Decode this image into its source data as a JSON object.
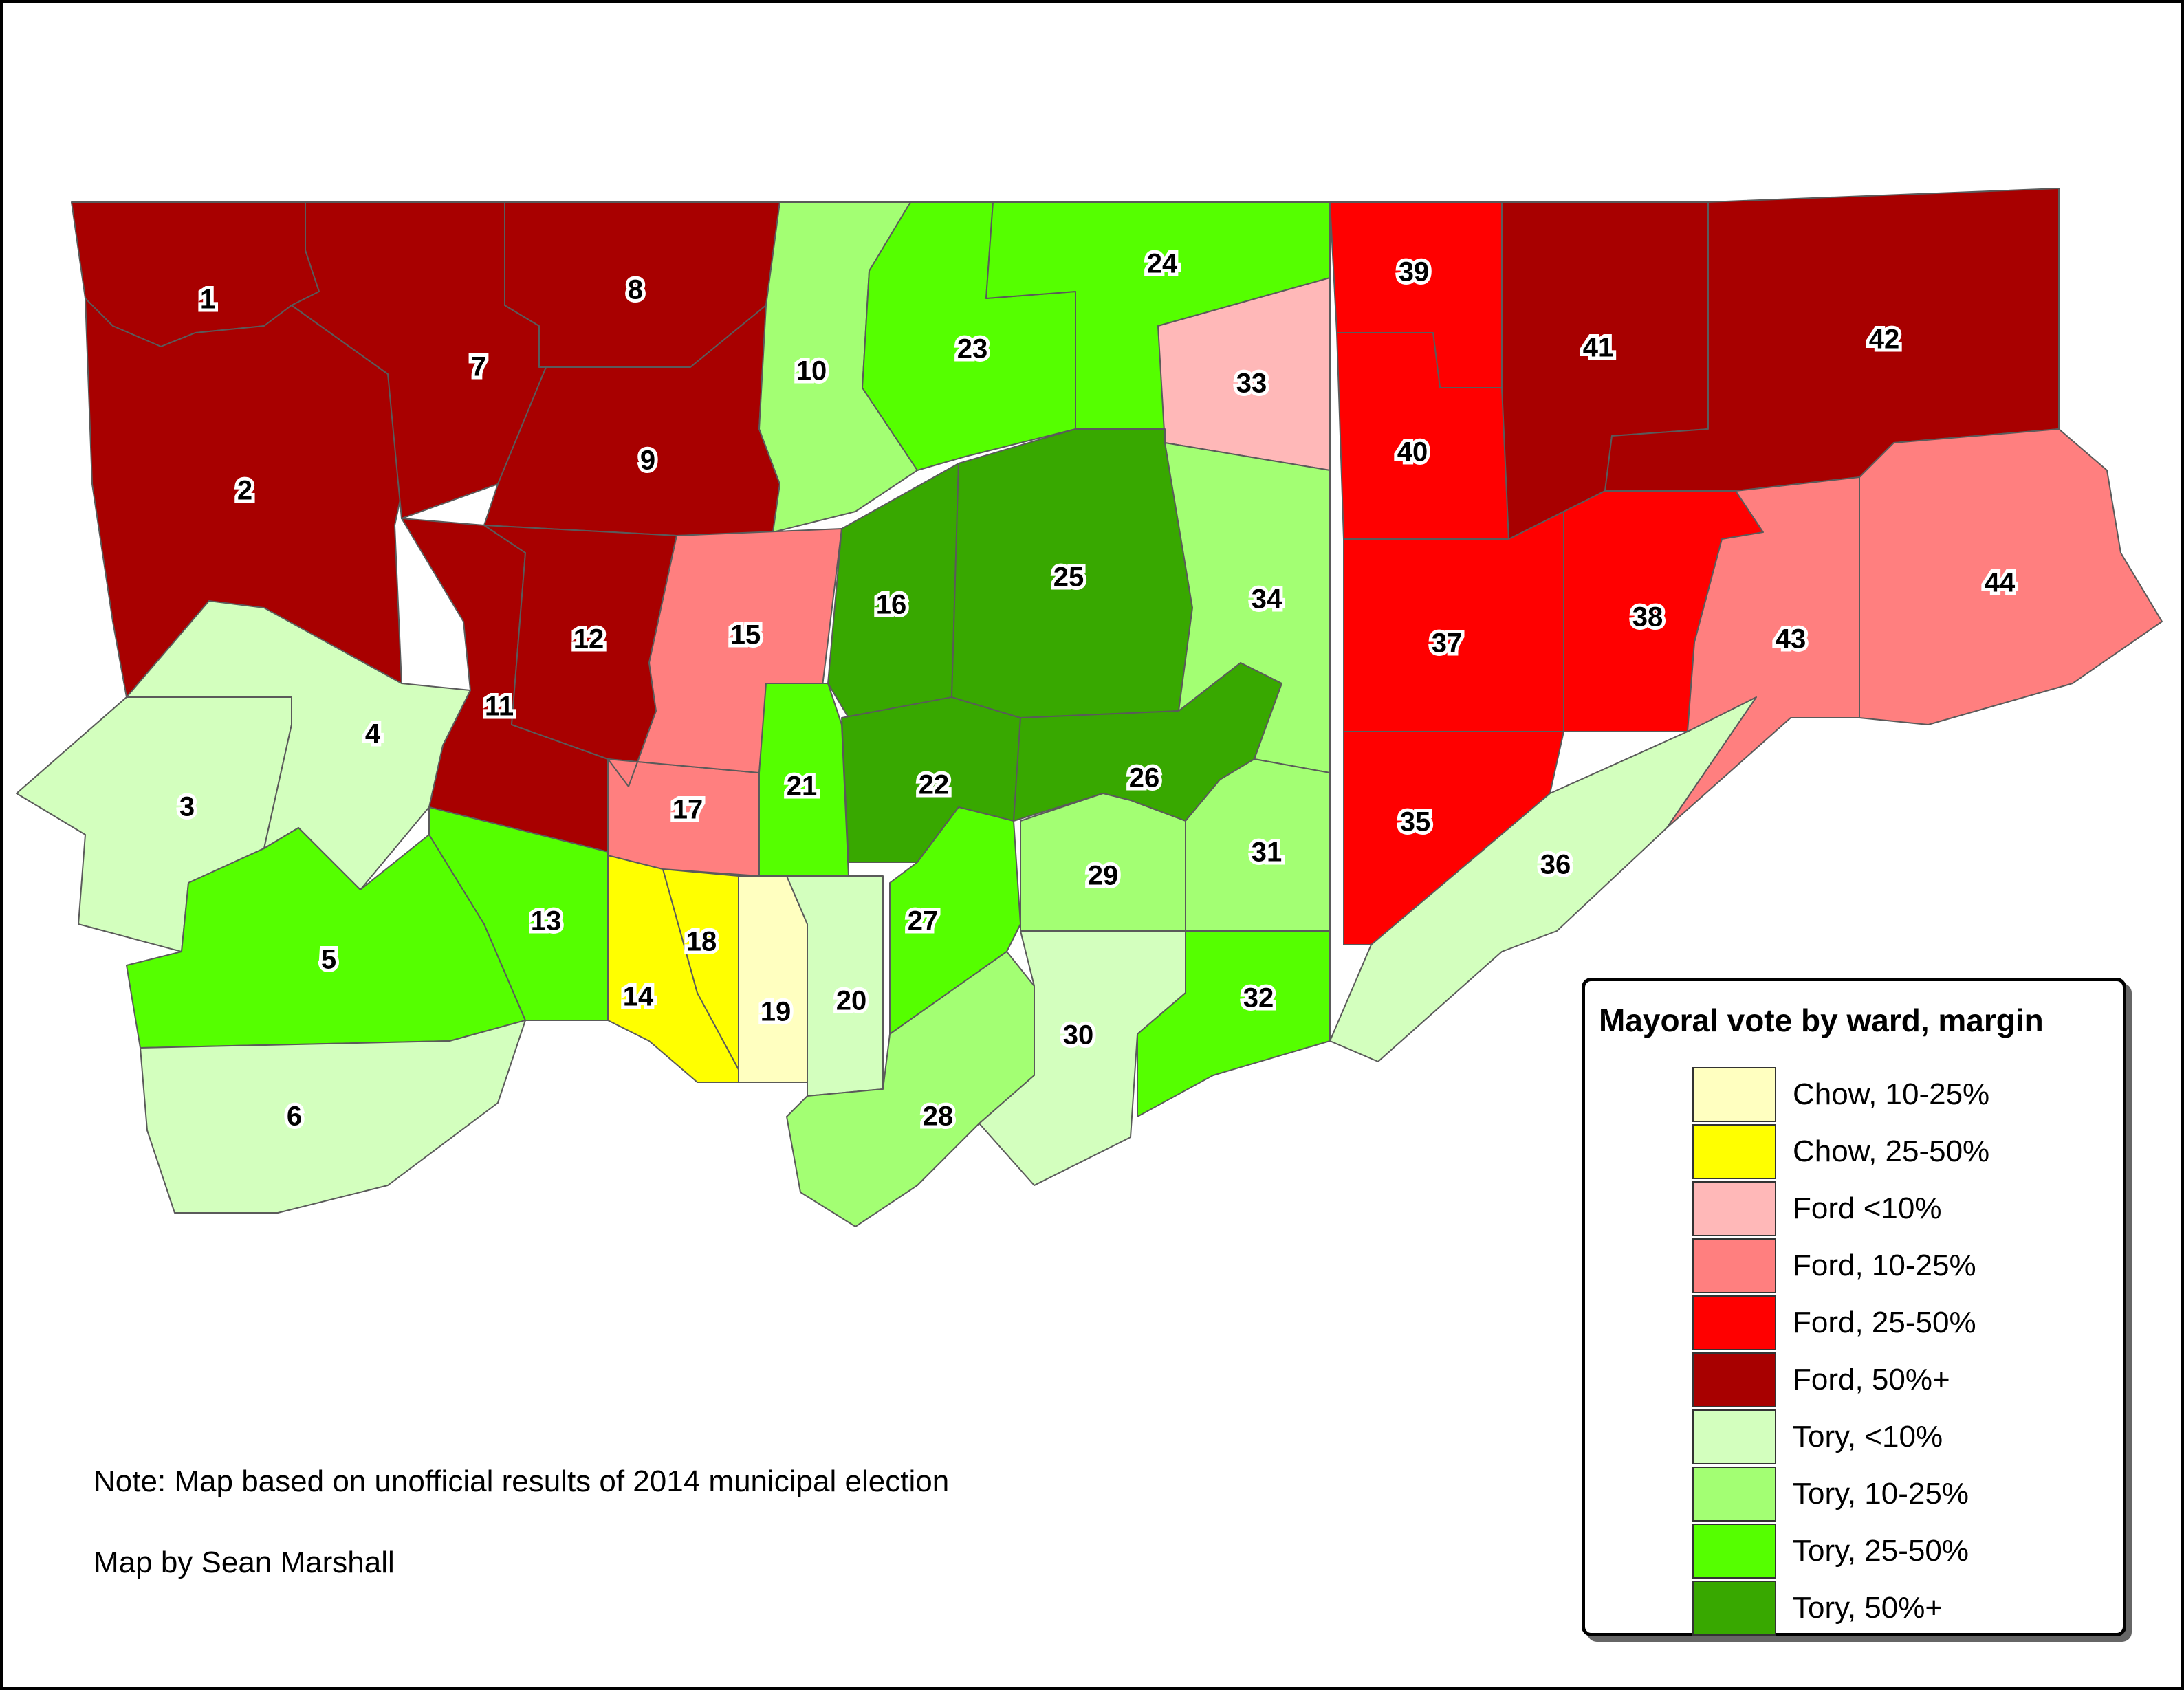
{
  "colors": {
    "chow_10_25": "#ffffc0",
    "chow_25_50": "#ffff00",
    "ford_lt10": "#ffb8b8",
    "ford_10_25": "#ff7f7f",
    "ford_25_50": "#ff0000",
    "ford_50": "#a80000",
    "tory_lt10": "#d3ffbe",
    "tory_10_25": "#a3ff73",
    "tory_25_50": "#55ff00",
    "tory_50": "#38a800"
  },
  "wards": [
    {
      "number": "1",
      "category": "ford_50"
    },
    {
      "number": "2",
      "category": "ford_50"
    },
    {
      "number": "3",
      "category": "tory_lt10"
    },
    {
      "number": "4",
      "category": "tory_lt10"
    },
    {
      "number": "5",
      "category": "tory_25_50"
    },
    {
      "number": "6",
      "category": "tory_lt10"
    },
    {
      "number": "7",
      "category": "ford_50"
    },
    {
      "number": "8",
      "category": "ford_50"
    },
    {
      "number": "9",
      "category": "ford_50"
    },
    {
      "number": "10",
      "category": "tory_10_25"
    },
    {
      "number": "11",
      "category": "ford_50"
    },
    {
      "number": "12",
      "category": "ford_50"
    },
    {
      "number": "13",
      "category": "tory_25_50"
    },
    {
      "number": "14",
      "category": "chow_25_50"
    },
    {
      "number": "15",
      "category": "ford_10_25"
    },
    {
      "number": "16",
      "category": "tory_50"
    },
    {
      "number": "17",
      "category": "ford_10_25"
    },
    {
      "number": "18",
      "category": "chow_25_50"
    },
    {
      "number": "19",
      "category": "chow_10_25"
    },
    {
      "number": "20",
      "category": "tory_lt10"
    },
    {
      "number": "21",
      "category": "tory_25_50"
    },
    {
      "number": "22",
      "category": "tory_50"
    },
    {
      "number": "23",
      "category": "tory_25_50"
    },
    {
      "number": "24",
      "category": "tory_25_50"
    },
    {
      "number": "25",
      "category": "tory_50"
    },
    {
      "number": "26",
      "category": "tory_50"
    },
    {
      "number": "27",
      "category": "tory_25_50"
    },
    {
      "number": "28",
      "category": "tory_10_25"
    },
    {
      "number": "29",
      "category": "tory_10_25"
    },
    {
      "number": "30",
      "category": "tory_lt10"
    },
    {
      "number": "31",
      "category": "tory_10_25"
    },
    {
      "number": "32",
      "category": "tory_25_50"
    },
    {
      "number": "33",
      "category": "ford_lt10"
    },
    {
      "number": "34",
      "category": "tory_10_25"
    },
    {
      "number": "35",
      "category": "ford_25_50"
    },
    {
      "number": "36",
      "category": "tory_lt10"
    },
    {
      "number": "37",
      "category": "ford_25_50"
    },
    {
      "number": "38",
      "category": "ford_25_50"
    },
    {
      "number": "39",
      "category": "ford_25_50"
    },
    {
      "number": "40",
      "category": "ford_25_50"
    },
    {
      "number": "41",
      "category": "ford_50"
    },
    {
      "number": "42",
      "category": "ford_50"
    },
    {
      "number": "43",
      "category": "ford_10_25"
    },
    {
      "number": "44",
      "category": "ford_10_25"
    }
  ],
  "legend": {
    "title": "Mayoral vote by ward, margin",
    "items": [
      {
        "label": "Chow, 10-25%",
        "color": "#ffffc0"
      },
      {
        "label": "Chow, 25-50%",
        "color": "#ffff00"
      },
      {
        "label": "Ford <10%",
        "color": "#ffb8b8"
      },
      {
        "label": "Ford, 10-25%",
        "color": "#ff7f7f"
      },
      {
        "label": "Ford, 25-50%",
        "color": "#ff0000"
      },
      {
        "label": "Ford, 50%+",
        "color": "#a80000"
      },
      {
        "label": "Tory, <10%",
        "color": "#d3ffbe"
      },
      {
        "label": "Tory, 10-25%",
        "color": "#a3ff73"
      },
      {
        "label": "Tory, 25-50%",
        "color": "#55ff00"
      },
      {
        "label": "Tory, 50%+",
        "color": "#38a800"
      }
    ]
  },
  "notes": {
    "note": "Note: Map based on unofficial results of 2014 municipal election",
    "credit": "Map by Sean Marshall"
  }
}
